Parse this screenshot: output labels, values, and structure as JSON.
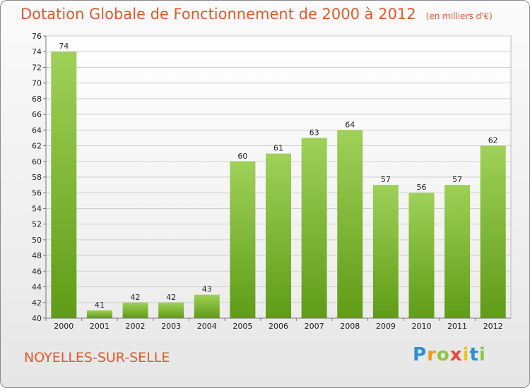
{
  "title": "Dotation Globale de Fonctionnement de 2000 à 2012",
  "subtitle": "(en milliers d'€)",
  "location": "NOYELLES-SUR-SELLE",
  "logo": {
    "text": "Proxiti"
  },
  "colors": {
    "bar_top": "#9fd158",
    "bar_bottom": "#5f9c17",
    "title": "#e0592a"
  },
  "chart_data": {
    "type": "bar",
    "categories": [
      "2000",
      "2001",
      "2002",
      "2003",
      "2004",
      "2005",
      "2006",
      "2007",
      "2008",
      "2009",
      "2010",
      "2011",
      "2012"
    ],
    "values": [
      74,
      41,
      42,
      42,
      43,
      60,
      61,
      63,
      64,
      57,
      56,
      57,
      62
    ],
    "ylim": [
      40,
      76
    ],
    "yticks": [
      40,
      42,
      44,
      46,
      48,
      50,
      52,
      54,
      56,
      58,
      60,
      62,
      64,
      66,
      68,
      70,
      72,
      74,
      76
    ],
    "grid": true,
    "data_labels": true
  }
}
